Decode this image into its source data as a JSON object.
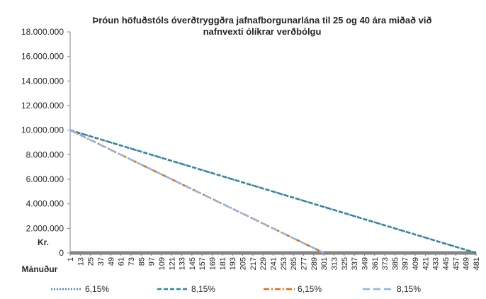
{
  "chart_data": {
    "type": "line",
    "title_line1": "Þróun höfuðstóls óverðtryggðra jafnafborgunarlána til 25 og 40 ára miðað við",
    "title_line2": "nafnvexti ólíkrar verðbólgu",
    "ylabel": "Kr.",
    "xlabel": "Mánuður",
    "ylim": [
      0,
      18000000
    ],
    "xlim": [
      1,
      481
    ],
    "y_ticks": [
      "0",
      "2.000.000",
      "4.000.000",
      "6.000.000",
      "8.000.000",
      "10.000.000",
      "12.000.000",
      "14.000.000",
      "16.000.000",
      "18.000.000"
    ],
    "y_tick_values": [
      0,
      2000000,
      4000000,
      6000000,
      8000000,
      10000000,
      12000000,
      14000000,
      16000000,
      18000000
    ],
    "x_ticks": [
      "1",
      "13",
      "25",
      "37",
      "49",
      "61",
      "73",
      "85",
      "97",
      "109",
      "121",
      "133",
      "145",
      "157",
      "169",
      "181",
      "193",
      "205",
      "217",
      "229",
      "241",
      "253",
      "265",
      "277",
      "289",
      "301",
      "313",
      "325",
      "337",
      "349",
      "361",
      "373",
      "385",
      "397",
      "409",
      "421",
      "433",
      "445",
      "457",
      "469",
      "481"
    ],
    "x_tick_values": [
      1,
      13,
      25,
      37,
      49,
      61,
      73,
      85,
      97,
      109,
      121,
      133,
      145,
      157,
      169,
      181,
      193,
      205,
      217,
      229,
      241,
      253,
      265,
      277,
      289,
      301,
      313,
      325,
      337,
      349,
      361,
      373,
      385,
      397,
      409,
      421,
      433,
      445,
      457,
      469,
      481
    ],
    "grid": false,
    "legend_position": "bottom",
    "series": [
      {
        "name": "6,15%",
        "color": "#4f81bd",
        "dash": "dotted",
        "x": [
          1,
          481
        ],
        "y": [
          10000000,
          0
        ]
      },
      {
        "name": "8,15%",
        "color": "#31859c",
        "dash": "dashed",
        "x": [
          1,
          481
        ],
        "y": [
          10000000,
          0
        ]
      },
      {
        "name": "6,15%",
        "color": "#e46c0a",
        "dash": "dashdot",
        "x": [
          1,
          301
        ],
        "y": [
          10000000,
          0
        ]
      },
      {
        "name": "8,15%",
        "color": "#8eb4e3",
        "dash": "longdash",
        "x": [
          1,
          301
        ],
        "y": [
          10000000,
          0
        ]
      }
    ]
  }
}
